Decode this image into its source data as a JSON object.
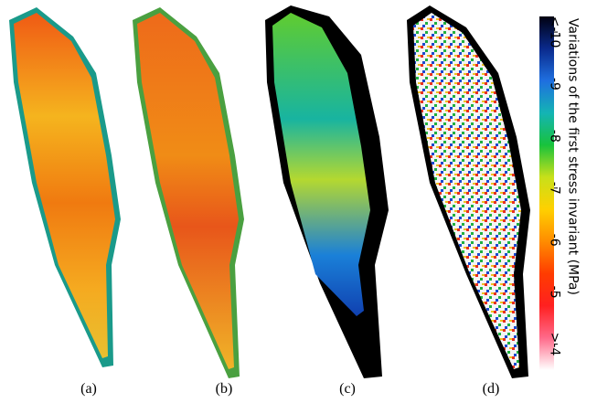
{
  "chart_data": {
    "type": "heatmap",
    "panels": [
      "(a)",
      "(b)",
      "(c)",
      "(d)"
    ],
    "colorbar": {
      "label": "Variations of the first stress invariant (MPa)",
      "lim": [
        -10.3,
        -3.5
      ],
      "ticks": [
        {
          "value": -10,
          "label": "<-10"
        },
        -9,
        -8,
        -7,
        -6,
        -5,
        {
          "value": -4,
          "label": ">-4"
        }
      ],
      "colors": [
        "#000010",
        "#0a2a8c",
        "#1f6fe0",
        "#14b4b4",
        "#18c23c",
        "#c8e01a",
        "#ffd000",
        "#ff8c00",
        "#ff3c00",
        "#ff2020",
        "#ff6a8a",
        "#ffffff"
      ]
    }
  }
}
